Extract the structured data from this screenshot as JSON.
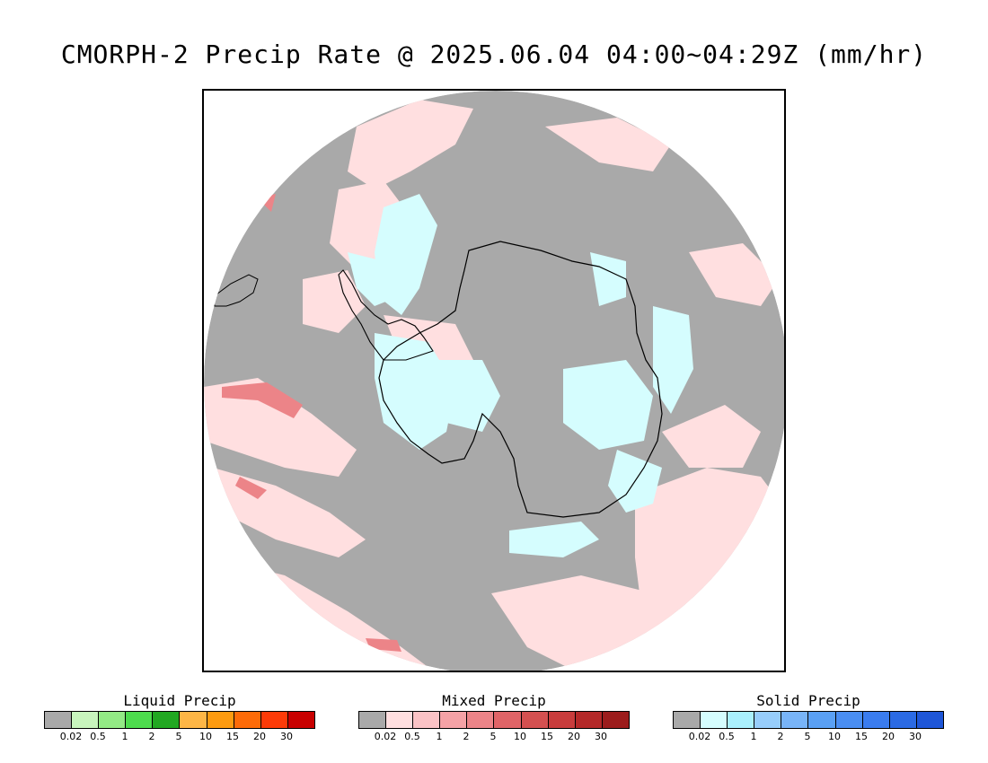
{
  "title": "CMORPH-2 Precip Rate @ 2025.06.04 04:00~04:29Z (mm/hr)",
  "map": {
    "projection": "south-polar-stereographic",
    "background_color": "#a9a9a9",
    "mixed_light_color": "#ffdfe0",
    "solid_light_color": "#d5fdfe",
    "coastline_color": "#000000"
  },
  "legends": [
    {
      "id": "liquid",
      "title": "Liquid Precip",
      "colors": [
        "#a9a9a9",
        "#c8f5bd",
        "#93ea85",
        "#4ddc4d",
        "#22a822",
        "#fdb646",
        "#fd9b10",
        "#fd6b08",
        "#fd3b08",
        "#c80000"
      ],
      "ticks": [
        "0.02",
        "0.5",
        "1",
        "2",
        "5",
        "10",
        "15",
        "20",
        "30"
      ]
    },
    {
      "id": "mixed",
      "title": "Mixed Precip",
      "colors": [
        "#a9a9a9",
        "#ffdfe0",
        "#fbc3c6",
        "#f5a2a6",
        "#ec8488",
        "#e06467",
        "#d45050",
        "#c83c3c",
        "#b42828",
        "#9c1c1c"
      ],
      "ticks": [
        "0.02",
        "0.5",
        "1",
        "2",
        "5",
        "10",
        "15",
        "20",
        "30"
      ]
    },
    {
      "id": "solid",
      "title": "Solid Precip",
      "colors": [
        "#a9a9a9",
        "#d5fdfe",
        "#aaf0fd",
        "#97cdfb",
        "#78b4f8",
        "#5aa0f4",
        "#4a8ef2",
        "#3a7cef",
        "#2b6ae4",
        "#1e56d8"
      ],
      "ticks": [
        "0.02",
        "0.5",
        "1",
        "2",
        "5",
        "10",
        "15",
        "20",
        "30"
      ]
    }
  ]
}
